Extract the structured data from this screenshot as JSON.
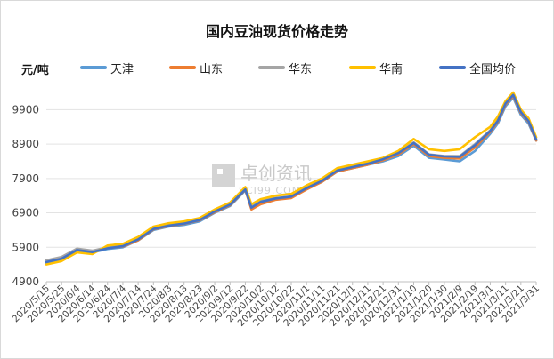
{
  "chart_data": {
    "type": "line",
    "title": "国内豆油现货价格走势",
    "ylabel": "元/吨",
    "ylim": [
      4900,
      10400
    ],
    "yticks": [
      4900,
      5900,
      6900,
      7900,
      8900,
      9900
    ],
    "xtick_labels": [
      "2020/5/15",
      "2020/5/25",
      "2020/6/4",
      "2020/6/14",
      "2020/6/24",
      "2020/7/4",
      "2020/7/14",
      "2020/7/24",
      "2020/8/3",
      "2020/8/13",
      "2020/8/23",
      "2020/9/2",
      "2020/9/12",
      "2020/9/22",
      "2020/10/2",
      "2020/10/12",
      "2020/10/22",
      "2020/11/1",
      "2020/11/11",
      "2020/11/21",
      "2020/12/1",
      "2020/12/11",
      "2020/12/21",
      "2020/12/31",
      "2021/1/10",
      "2021/1/20",
      "2021/1/30",
      "2021/2/9",
      "2021/2/19",
      "2021/3/1",
      "2021/3/11",
      "2021/3/21",
      "2021/3/31"
    ],
    "x": [
      "2020/5/15",
      "2020/5/25",
      "2020/6/4",
      "2020/6/14",
      "2020/6/24",
      "2020/7/4",
      "2020/7/14",
      "2020/7/24",
      "2020/8/3",
      "2020/8/13",
      "2020/8/23",
      "2020/9/2",
      "2020/9/12",
      "2020/9/22",
      "2020/9/26",
      "2020/10/2",
      "2020/10/12",
      "2020/10/22",
      "2020/11/1",
      "2020/11/11",
      "2020/11/21",
      "2020/12/1",
      "2020/12/11",
      "2020/12/21",
      "2020/12/31",
      "2021/1/10",
      "2021/1/20",
      "2021/1/30",
      "2021/2/9",
      "2021/2/19",
      "2021/3/1",
      "2021/3/6",
      "2021/3/11",
      "2021/3/16",
      "2021/3/21",
      "2021/3/26",
      "2021/3/31"
    ],
    "series": [
      {
        "name": "天津",
        "color": "#5b9bd5",
        "values": [
          5450,
          5550,
          5800,
          5750,
          5850,
          5900,
          6100,
          6400,
          6500,
          6550,
          6650,
          6900,
          7100,
          7550,
          7050,
          7200,
          7300,
          7350,
          7600,
          7800,
          8100,
          8200,
          8300,
          8400,
          8550,
          8850,
          8500,
          8450,
          8400,
          8700,
          9200,
          9500,
          10000,
          10250,
          9750,
          9500,
          9000
        ]
      },
      {
        "name": "山东",
        "color": "#ed7d31",
        "values": [
          5500,
          5600,
          5850,
          5780,
          5880,
          5920,
          6100,
          6420,
          6520,
          6580,
          6680,
          6920,
          7120,
          7570,
          7000,
          7150,
          7280,
          7330,
          7580,
          7800,
          8100,
          8200,
          8300,
          8430,
          8600,
          8900,
          8550,
          8500,
          8480,
          8800,
          9250,
          9550,
          10050,
          10300,
          9800,
          9550,
          9000
        ]
      },
      {
        "name": "华东",
        "color": "#a5a5a5",
        "values": [
          5520,
          5620,
          5860,
          5800,
          5900,
          5950,
          6150,
          6450,
          6550,
          6600,
          6700,
          6950,
          7150,
          7600,
          7100,
          7250,
          7330,
          7380,
          7650,
          7850,
          8150,
          8250,
          8350,
          8470,
          8650,
          8950,
          8600,
          8550,
          8550,
          8900,
          9300,
          9600,
          10100,
          10350,
          9850,
          9600,
          9050
        ]
      },
      {
        "name": "华南",
        "color": "#ffc000",
        "values": [
          5400,
          5500,
          5750,
          5700,
          5950,
          6000,
          6200,
          6500,
          6600,
          6650,
          6750,
          7000,
          7200,
          7650,
          7150,
          7300,
          7400,
          7450,
          7700,
          7900,
          8200,
          8300,
          8400,
          8500,
          8700,
          9050,
          8750,
          8700,
          8750,
          9100,
          9400,
          9700,
          10150,
          10400,
          9900,
          9650,
          9100
        ]
      },
      {
        "name": "全国均价",
        "color": "#4472c4",
        "values": [
          5470,
          5570,
          5820,
          5760,
          5870,
          5930,
          6130,
          6430,
          6530,
          6590,
          6690,
          6940,
          7140,
          7580,
          7050,
          7220,
          7320,
          7370,
          7620,
          7830,
          8130,
          8230,
          8330,
          8460,
          8640,
          8930,
          8590,
          8540,
          8530,
          8870,
          9280,
          9580,
          10080,
          10330,
          9830,
          9570,
          9030
        ]
      }
    ]
  }
}
